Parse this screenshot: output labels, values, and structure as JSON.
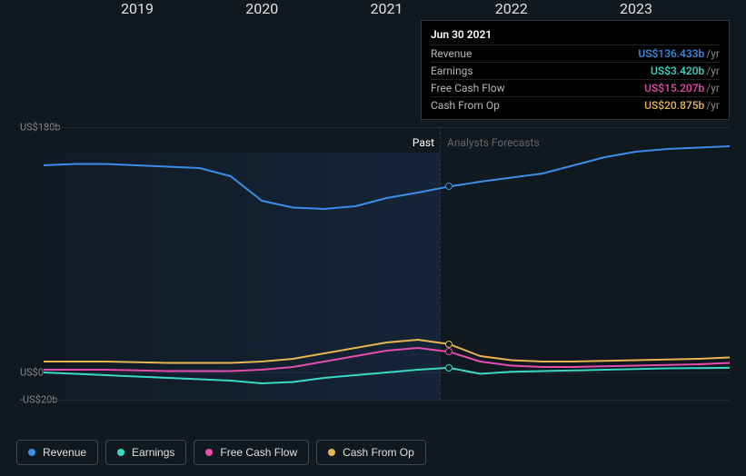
{
  "chart": {
    "type": "line",
    "background_color": "#101820",
    "y_axis": {
      "ticks": [
        {
          "value": 180,
          "label": "US$180b"
        },
        {
          "value": 0,
          "label": "US$0"
        },
        {
          "value": -20,
          "label": "-US$20b"
        }
      ],
      "ylim": [
        -20,
        180
      ],
      "label_fontsize": 11,
      "grid_color": "#222b35"
    },
    "x_axis": {
      "ticks": [
        "2019",
        "2020",
        "2021",
        "2022",
        "2023"
      ],
      "xlim": [
        2018.25,
        2023.75
      ]
    },
    "divider_x": 2021.5,
    "past_label": "Past",
    "forecast_label": "Analysts Forecasts",
    "shade": {
      "from": 2018.25,
      "to": 2021.5,
      "color_start": "rgba(30,60,100,0.05)",
      "color_end": "rgba(30,60,100,0.35)"
    },
    "series": {
      "revenue": {
        "label": "Revenue",
        "color": "#3b8ee8",
        "width": 2,
        "points": [
          [
            2018.25,
            152
          ],
          [
            2018.5,
            153
          ],
          [
            2018.75,
            153
          ],
          [
            2019.0,
            152
          ],
          [
            2019.25,
            151
          ],
          [
            2019.5,
            150
          ],
          [
            2019.75,
            144
          ],
          [
            2020.0,
            126
          ],
          [
            2020.25,
            121
          ],
          [
            2020.5,
            120
          ],
          [
            2020.75,
            122
          ],
          [
            2021.0,
            128
          ],
          [
            2021.25,
            132
          ],
          [
            2021.5,
            136.433
          ],
          [
            2021.75,
            140
          ],
          [
            2022.0,
            143
          ],
          [
            2022.25,
            146
          ],
          [
            2022.5,
            152
          ],
          [
            2022.75,
            158
          ],
          [
            2023.0,
            162
          ],
          [
            2023.25,
            164
          ],
          [
            2023.5,
            165
          ],
          [
            2023.75,
            166
          ]
        ]
      },
      "earnings": {
        "label": "Earnings",
        "color": "#39d9c6",
        "width": 2,
        "points": [
          [
            2018.25,
            0
          ],
          [
            2018.5,
            -1
          ],
          [
            2018.75,
            -2
          ],
          [
            2019.0,
            -3
          ],
          [
            2019.25,
            -4
          ],
          [
            2019.5,
            -5
          ],
          [
            2019.75,
            -6
          ],
          [
            2020.0,
            -8
          ],
          [
            2020.25,
            -7
          ],
          [
            2020.5,
            -4
          ],
          [
            2020.75,
            -2
          ],
          [
            2021.0,
            0
          ],
          [
            2021.25,
            2
          ],
          [
            2021.5,
            3.42
          ],
          [
            2021.75,
            -1
          ],
          [
            2022.0,
            0.5
          ],
          [
            2022.25,
            1
          ],
          [
            2022.5,
            1.5
          ],
          [
            2022.75,
            2
          ],
          [
            2023.0,
            2.5
          ],
          [
            2023.25,
            3
          ],
          [
            2023.5,
            3.2
          ],
          [
            2023.75,
            3.4
          ]
        ]
      },
      "fcf": {
        "label": "Free Cash Flow",
        "color": "#e64cb0",
        "width": 2,
        "points": [
          [
            2018.25,
            2
          ],
          [
            2018.5,
            2
          ],
          [
            2018.75,
            2
          ],
          [
            2019.0,
            1.5
          ],
          [
            2019.25,
            1
          ],
          [
            2019.5,
            1
          ],
          [
            2019.75,
            1
          ],
          [
            2020.0,
            2
          ],
          [
            2020.25,
            4
          ],
          [
            2020.5,
            8
          ],
          [
            2020.75,
            12
          ],
          [
            2021.0,
            16
          ],
          [
            2021.25,
            18
          ],
          [
            2021.5,
            15.207
          ],
          [
            2021.75,
            8
          ],
          [
            2022.0,
            5
          ],
          [
            2022.25,
            4
          ],
          [
            2022.5,
            4
          ],
          [
            2022.75,
            4.5
          ],
          [
            2023.0,
            5
          ],
          [
            2023.25,
            5.5
          ],
          [
            2023.5,
            6
          ],
          [
            2023.75,
            7
          ]
        ]
      },
      "cfo": {
        "label": "Cash From Op",
        "color": "#e8b650",
        "width": 2,
        "points": [
          [
            2018.25,
            8
          ],
          [
            2018.5,
            8
          ],
          [
            2018.75,
            8
          ],
          [
            2019.0,
            7.5
          ],
          [
            2019.25,
            7
          ],
          [
            2019.5,
            7
          ],
          [
            2019.75,
            7
          ],
          [
            2020.0,
            8
          ],
          [
            2020.25,
            10
          ],
          [
            2020.5,
            14
          ],
          [
            2020.75,
            18
          ],
          [
            2021.0,
            22
          ],
          [
            2021.25,
            24
          ],
          [
            2021.5,
            20.875
          ],
          [
            2021.75,
            12
          ],
          [
            2022.0,
            9
          ],
          [
            2022.25,
            8
          ],
          [
            2022.5,
            8
          ],
          [
            2022.75,
            8.5
          ],
          [
            2023.0,
            9
          ],
          [
            2023.25,
            9.5
          ],
          [
            2023.5,
            10
          ],
          [
            2023.75,
            11
          ]
        ]
      }
    }
  },
  "tooltip": {
    "date": "Jun 30 2021",
    "rows": [
      {
        "label": "Revenue",
        "value": "US$136.433b",
        "unit": "/yr",
        "color": "#3b8ee8"
      },
      {
        "label": "Earnings",
        "value": "US$3.420b",
        "unit": "/yr",
        "color": "#39d9c6"
      },
      {
        "label": "Free Cash Flow",
        "value": "US$15.207b",
        "unit": "/yr",
        "color": "#e64cb0"
      },
      {
        "label": "Cash From Op",
        "value": "US$20.875b",
        "unit": "/yr",
        "color": "#e8b650"
      }
    ]
  },
  "legend": [
    {
      "label": "Revenue",
      "color": "#3b8ee8"
    },
    {
      "label": "Earnings",
      "color": "#39d9c6"
    },
    {
      "label": "Free Cash Flow",
      "color": "#e64cb0"
    },
    {
      "label": "Cash From Op",
      "color": "#e8b650"
    }
  ]
}
